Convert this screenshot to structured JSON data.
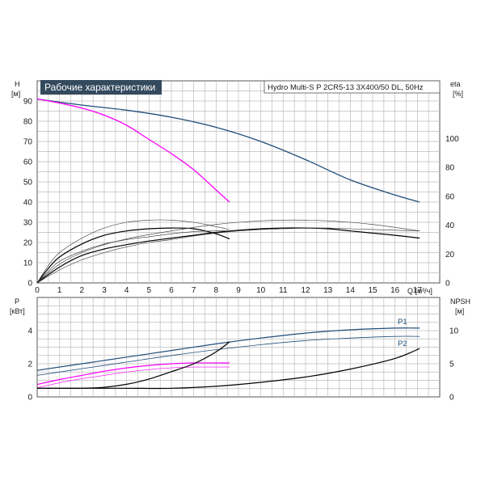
{
  "chart_data": [
    {
      "type": "line",
      "title": "Рабочие характеристики",
      "model": "Hydro Multi-S P 2CR5-13 3X400/50 DL, 50Hz",
      "xlabel": "Q [м³/ч]",
      "ylabel_left": "H",
      "ylabel_left_unit": "[м]",
      "ylabel_right": "eta",
      "ylabel_right_unit": "[%]",
      "xlim": [
        0,
        18
      ],
      "ylim": [
        0,
        100
      ],
      "ylim_right": [
        0,
        140
      ],
      "xticks": [
        "0",
        "1",
        "2",
        "3",
        "4",
        "5",
        "6",
        "7",
        "8",
        "9",
        "10",
        "11",
        "12",
        "13",
        "14",
        "15",
        "16",
        "17"
      ],
      "yticks": [
        "0",
        "10",
        "20",
        "30",
        "40",
        "50",
        "60",
        "70",
        "80",
        "90"
      ],
      "yticks_right": [
        "0",
        "20",
        "40",
        "60",
        "80",
        "100"
      ],
      "grid": true,
      "series": [
        {
          "axis": "left",
          "color": "#1f4e79",
          "width": 1.3,
          "x": [
            0,
            2,
            4,
            6,
            8,
            10,
            12,
            14,
            16,
            17.1
          ],
          "values": [
            91,
            88,
            85.5,
            82,
            77,
            70,
            61,
            51,
            43.5,
            40
          ]
        },
        {
          "axis": "left",
          "color": "#ff00ff",
          "width": 1.3,
          "x": [
            0,
            1,
            2,
            3,
            4,
            5,
            6,
            7,
            8,
            8.6
          ],
          "values": [
            91,
            89,
            86.5,
            83,
            78,
            71,
            64,
            56,
            46,
            40
          ]
        },
        {
          "axis": "right",
          "color": "#000000",
          "width": 1.2,
          "x": [
            0,
            0.5,
            1,
            2,
            3,
            4,
            5,
            6,
            7,
            8,
            8.6
          ],
          "values": [
            0,
            10,
            18,
            27,
            33,
            36,
            37.5,
            38,
            37.5,
            34,
            30.5
          ]
        },
        {
          "axis": "right",
          "color": "#333333",
          "width": 0.6,
          "x": [
            0,
            0.5,
            1,
            2,
            3,
            4,
            5,
            6,
            7,
            8,
            8.6
          ],
          "values": [
            0,
            12,
            21,
            31,
            38,
            42,
            43.5,
            43.5,
            42,
            39,
            37
          ]
        },
        {
          "axis": "right",
          "color": "#333333",
          "width": 0.6,
          "x": [
            0,
            0.5,
            1,
            2,
            3,
            4,
            5,
            6,
            7,
            8,
            8.6
          ],
          "values": [
            0,
            8,
            15,
            22,
            27,
            30,
            32,
            34,
            35.5,
            36,
            36
          ]
        },
        {
          "axis": "right",
          "color": "#000000",
          "width": 1.2,
          "x": [
            0,
            1,
            2,
            3,
            4,
            5,
            6,
            7,
            8,
            9,
            10,
            11,
            12,
            13,
            14,
            15,
            16,
            17.1
          ],
          "values": [
            0,
            11,
            19,
            23.5,
            26.5,
            29,
            31,
            33,
            35,
            36.5,
            37.5,
            38,
            38,
            37.5,
            36,
            34.5,
            33,
            31
          ]
        },
        {
          "axis": "right",
          "color": "#333333",
          "width": 0.6,
          "x": [
            0,
            1,
            2,
            3,
            4,
            5,
            6,
            7,
            8,
            9,
            10,
            11,
            12,
            13,
            14,
            15,
            16,
            17.1
          ],
          "values": [
            0,
            13,
            21,
            26.5,
            30.5,
            33.5,
            36,
            38.5,
            40.5,
            42,
            43,
            43.5,
            43.5,
            43,
            42,
            40.5,
            38.5,
            36
          ]
        },
        {
          "axis": "right",
          "color": "#333333",
          "width": 0.6,
          "x": [
            0,
            1,
            2,
            3,
            4,
            5,
            6,
            7,
            8,
            9,
            10,
            11,
            12,
            13,
            14,
            15,
            16,
            17.1
          ],
          "values": [
            0,
            9,
            16,
            21,
            25,
            28,
            30,
            32.5,
            34.5,
            36,
            37,
            37.5,
            38,
            38,
            37.5,
            37,
            36.5,
            36
          ]
        }
      ]
    },
    {
      "type": "line",
      "xlim": [
        0,
        18
      ],
      "ylim": [
        0,
        6
      ],
      "ylim_right": [
        0,
        15
      ],
      "ylabel_left": "P",
      "ylabel_left_unit": "[кВт]",
      "ylabel_right": "NPSH",
      "ylabel_right_unit": "[м]",
      "yticks": [
        "0",
        "2",
        "4"
      ],
      "yticks_right": [
        "0",
        "5",
        "10"
      ],
      "grid": true,
      "series": [
        {
          "name": "P1",
          "axis": "left",
          "color": "#1f4e79",
          "width": 1.2,
          "x": [
            0,
            2,
            4,
            6,
            8,
            10,
            12,
            14,
            16,
            17.1
          ],
          "values": [
            1.6,
            2.0,
            2.4,
            2.8,
            3.2,
            3.55,
            3.85,
            4.05,
            4.15,
            4.15
          ]
        },
        {
          "name": "P2",
          "axis": "left",
          "color": "#1f4e79",
          "width": 0.8,
          "x": [
            0,
            2,
            4,
            6,
            8,
            10,
            12,
            14,
            16,
            17.1
          ],
          "values": [
            1.3,
            1.7,
            2.1,
            2.5,
            2.85,
            3.15,
            3.4,
            3.55,
            3.65,
            3.65
          ]
        },
        {
          "axis": "left",
          "color": "#ff00ff",
          "width": 1.2,
          "x": [
            0,
            1,
            2,
            3,
            4,
            5,
            6,
            7,
            8,
            8.6
          ],
          "values": [
            0.75,
            1.05,
            1.3,
            1.55,
            1.75,
            1.9,
            2.0,
            2.05,
            2.05,
            2.05
          ]
        },
        {
          "axis": "left",
          "color": "#ff00ff",
          "width": 0.6,
          "x": [
            0,
            1,
            2,
            3,
            4,
            5,
            6,
            7,
            8,
            8.6
          ],
          "values": [
            0.55,
            0.85,
            1.1,
            1.3,
            1.5,
            1.65,
            1.75,
            1.8,
            1.8,
            1.8
          ]
        },
        {
          "axis": "right",
          "color": "#000000",
          "width": 1.2,
          "x": [
            0,
            1,
            2,
            3,
            4,
            5,
            6,
            7,
            8,
            8.6
          ],
          "values": [
            1.3,
            1.3,
            1.3,
            1.45,
            1.9,
            2.7,
            3.8,
            5.0,
            6.8,
            8.3
          ]
        },
        {
          "axis": "right",
          "color": "#000000",
          "width": 1.2,
          "x": [
            0,
            2,
            4,
            6,
            8,
            10,
            12,
            14,
            16,
            17.1
          ],
          "values": [
            1.3,
            1.3,
            1.3,
            1.3,
            1.6,
            2.2,
            3.0,
            4.2,
            5.8,
            7.3
          ]
        }
      ]
    }
  ]
}
